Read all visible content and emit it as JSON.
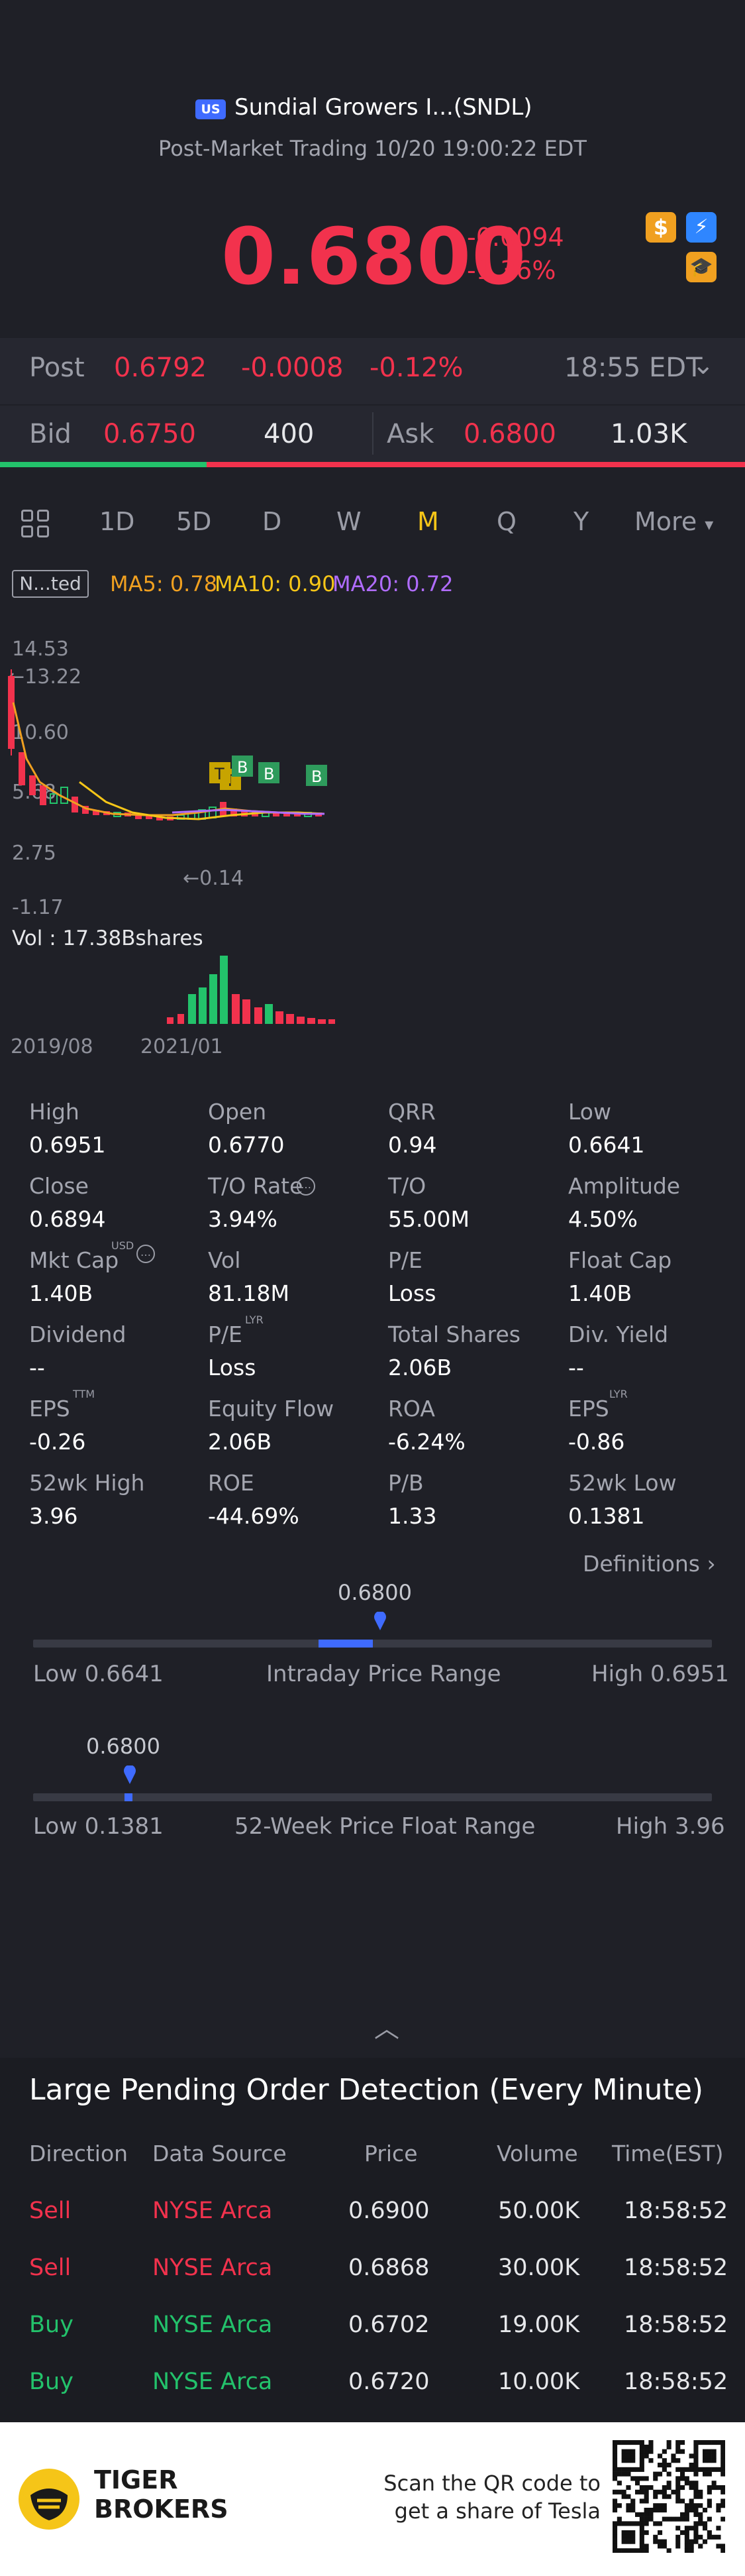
{
  "header": {
    "badge": "US",
    "title": "Sundial Growers I...(SNDL)",
    "session": "Post-Market Trading 10/20 19:00:22 EDT",
    "price": "0.6800",
    "change": "-0.0094",
    "change_pct": "-1.36%",
    "icons": [
      "dollar-icon",
      "flash-icon",
      "hat-icon"
    ]
  },
  "post": {
    "label": "Post",
    "price": "0.6792",
    "change": "-0.0008",
    "change_pct": "-0.12%",
    "time": "18:55 EDT"
  },
  "quote": {
    "bid_label": "Bid",
    "bid": "0.6750",
    "bid_size": "400",
    "ask_label": "Ask",
    "ask": "0.6800",
    "ask_size": "1.03K"
  },
  "tabs": {
    "items": [
      "1D",
      "5D",
      "D",
      "W",
      "M",
      "Q",
      "Y"
    ],
    "active": "M",
    "more": "More"
  },
  "chart": {
    "badge": "N...ted",
    "ma5": "MA5: 0.78",
    "ma10": "MA10: 0.90",
    "ma20": "MA20: 0.72",
    "y_labels": [
      "14.53",
      "13.22",
      "10.60",
      "5.68",
      "2.75",
      "0.14",
      "-1.17"
    ],
    "volume_label": "Vol  : 17.38Bshares",
    "x_labels": [
      "2019/08",
      "2021/01"
    ],
    "markers": [
      "T",
      "T",
      "B",
      "B",
      "B"
    ],
    "colors": {
      "up": "#23c26b",
      "down": "#f2324d",
      "ma5": "#f0a020",
      "ma10": "#f5c518",
      "ma20": "#b06cff"
    }
  },
  "stats": [
    [
      {
        "label": "High",
        "value": "0.6951"
      },
      {
        "label": "Open",
        "value": "0.6770"
      },
      {
        "label": "QRR",
        "value": "0.94"
      },
      {
        "label": "Low",
        "value": "0.6641"
      }
    ],
    [
      {
        "label": "Close",
        "value": "0.6894"
      },
      {
        "label": "T/O Rate",
        "value": "3.94%"
      },
      {
        "label": "T/O",
        "value": "55.00M"
      },
      {
        "label": "Amplitude",
        "value": "4.50%"
      }
    ],
    [
      {
        "label": "Mkt Cap",
        "value": "1.40B"
      },
      {
        "label": "Vol",
        "value": "81.18M"
      },
      {
        "label": "P/E",
        "value": "Loss"
      },
      {
        "label": "Float Cap",
        "value": "1.40B"
      }
    ],
    [
      {
        "label": "Dividend",
        "value": "--"
      },
      {
        "label": "P/E",
        "value": "Loss"
      },
      {
        "label": "Total Shares",
        "value": "2.06B"
      },
      {
        "label": "Div. Yield",
        "value": "--"
      }
    ],
    [
      {
        "label": "EPS",
        "value": "-0.26"
      },
      {
        "label": "Equity Flow",
        "value": "2.06B"
      },
      {
        "label": "ROA",
        "value": "-6.24%"
      },
      {
        "label": "EPS",
        "value": "-0.86"
      }
    ],
    [
      {
        "label": "52wk High",
        "value": "3.96"
      },
      {
        "label": "ROE",
        "value": "-44.69%"
      },
      {
        "label": "P/B",
        "value": "1.33"
      },
      {
        "label": "52wk Low",
        "value": "0.1381"
      }
    ]
  ],
  "stat_sups": {
    "mkt_cap": "USD",
    "pe_lyr": "LYR",
    "eps_ttm": "TTM",
    "eps_lyr": "LYR"
  },
  "definitions": "Definitions",
  "intraday": {
    "current": "0.6800",
    "low": "Low 0.6641",
    "label": "Intraday Price Range",
    "high": "High 0.6951",
    "fill_start": 0.42,
    "fill_end": 0.5
  },
  "week52": {
    "current": "0.6800",
    "low": "Low 0.1381",
    "label": "52-Week Price Float Range",
    "high": "High 3.96",
    "marker_pos": 0.14
  },
  "orders": {
    "title": "Large Pending Order Detection (Every Minute)",
    "headers": [
      "Direction",
      "Data Source",
      "Price",
      "Volume",
      "Time(EST)"
    ],
    "rows": [
      {
        "direction": "Sell",
        "source": "NYSE Arca",
        "price": "0.6900",
        "volume": "50.00K",
        "time": "18:58:52"
      },
      {
        "direction": "Sell",
        "source": "NYSE Arca",
        "price": "0.6868",
        "volume": "30.00K",
        "time": "18:58:52"
      },
      {
        "direction": "Buy",
        "source": "NYSE Arca",
        "price": "0.6702",
        "volume": "19.00K",
        "time": "18:58:52"
      },
      {
        "direction": "Buy",
        "source": "NYSE Arca",
        "price": "0.6720",
        "volume": "10.00K",
        "time": "18:58:52"
      }
    ]
  },
  "footer": {
    "brand1": "TIGER",
    "brand2": "BROKERS",
    "scan1": "Scan the QR code to",
    "scan2": "get a share of Tesla"
  }
}
